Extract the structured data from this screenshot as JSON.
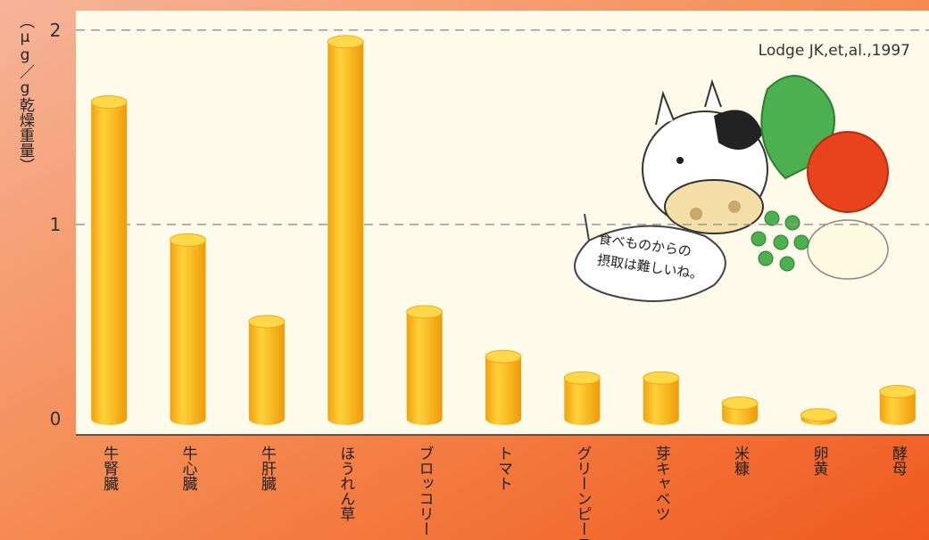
{
  "chart_data": {
    "type": "bar",
    "y_label": "（μg／g乾燥重量）",
    "citation": "Lodge JK,et,al.,1997",
    "annotation": [
      "食べものからの",
      "摂取は難しいね。"
    ],
    "categories": [
      "牛腎臓",
      "牛心臓",
      "牛肝臓",
      "ほうれん草",
      "ブロッコリー",
      "トマト",
      "グリーンピース",
      "芽キャベツ",
      "米糠",
      "卵黄",
      "酵母"
    ],
    "values": [
      1.63,
      0.92,
      0.5,
      1.94,
      0.55,
      0.32,
      0.21,
      0.21,
      0.08,
      0.02,
      0.14
    ],
    "color": "#f7b81c",
    "ylim": [
      0,
      2.1
    ],
    "yticks": [
      0,
      1,
      2
    ],
    "grid": true
  }
}
